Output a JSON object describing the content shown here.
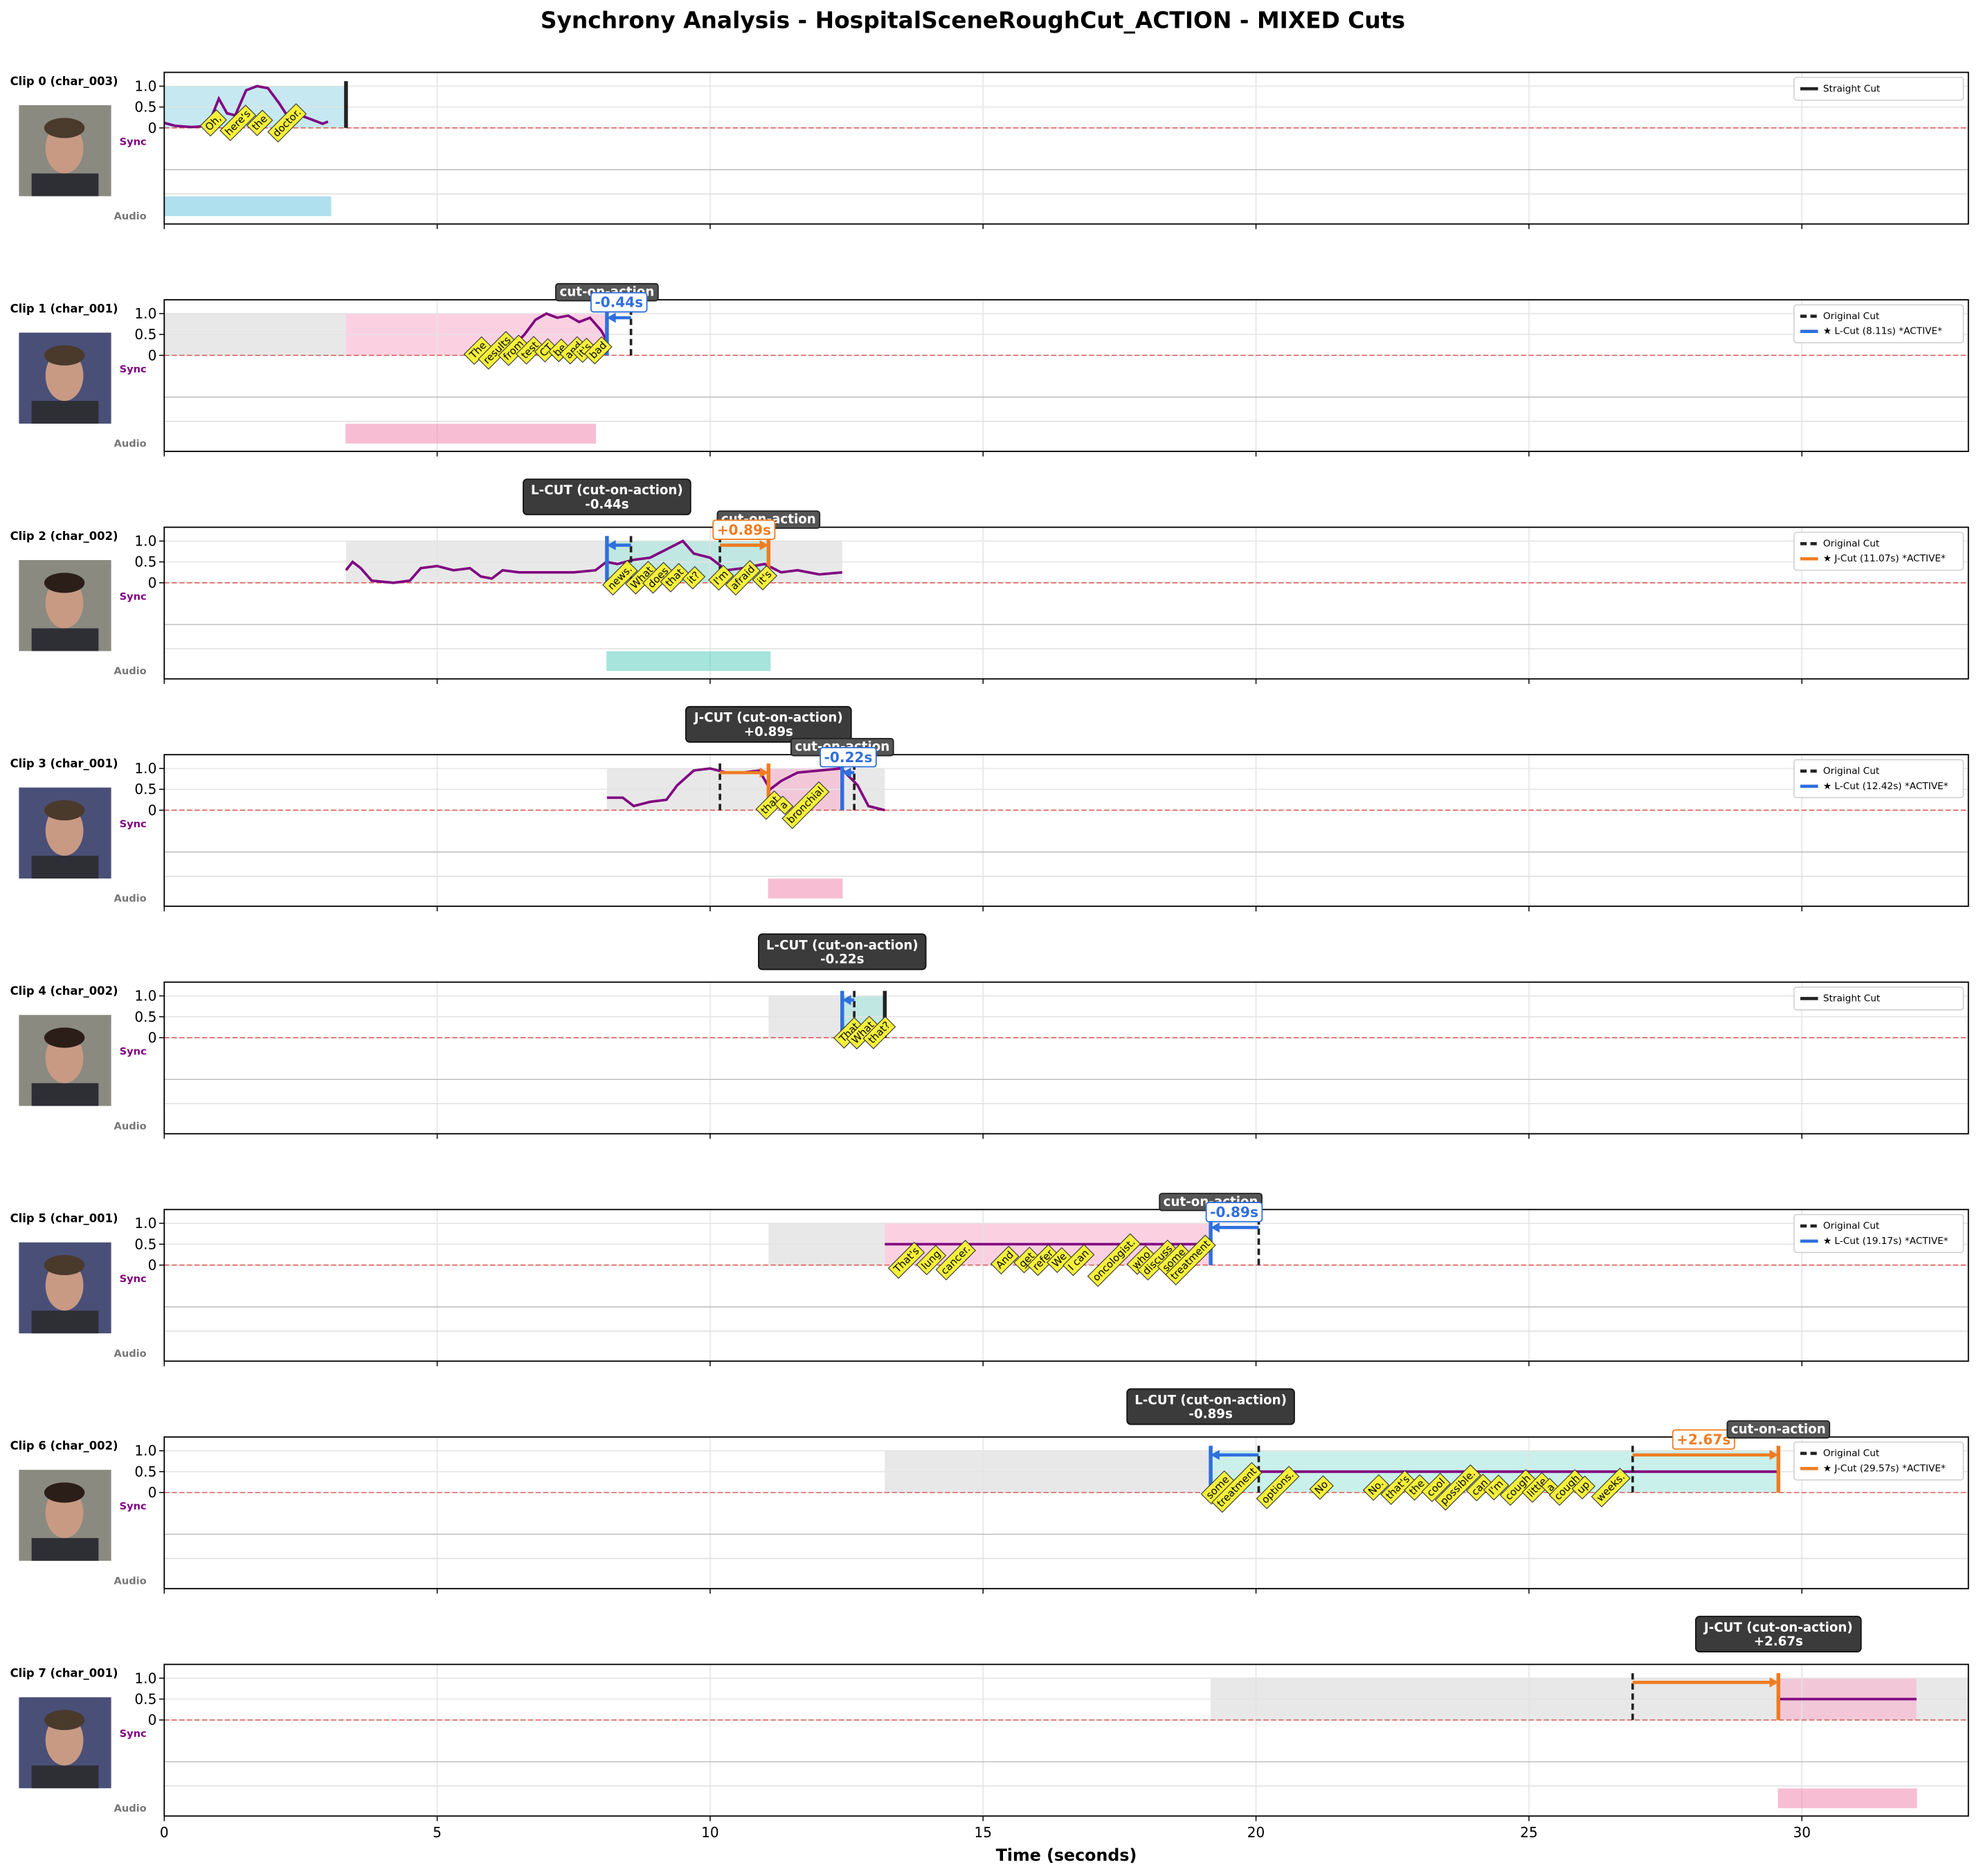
{
  "chart_data": {
    "type": "timeline",
    "title": "Synchrony Analysis - HospitalSceneRoughCut_ACTION - MIXED Cuts",
    "x_label": "Time (seconds)",
    "sync_label": "Sync",
    "audio_label": "Audio",
    "xlim": [
      0,
      33.05
    ],
    "xticks": [
      0,
      5,
      10,
      15,
      20,
      25,
      30
    ],
    "ylim": [
      -2.3,
      1.33
    ],
    "yticks": [
      0,
      0.5,
      {
        "value": 1,
        "label": "1.0"
      }
    ],
    "panels": [
      {
        "label": "Clip 0 (char_003)",
        "spans": [
          {
            "start": 0,
            "end": 3.33,
            "color": "#9fd9e8"
          }
        ],
        "sync": {
          "x": [
            0,
            0.2,
            0.5,
            0.8,
            1.0,
            1.15,
            1.3,
            1.5,
            1.7,
            1.9,
            2.1,
            2.3,
            2.5,
            2.7,
            2.9,
            3.0
          ],
          "values": [
            0.12,
            0.05,
            0.02,
            0.05,
            0.7,
            0.35,
            0.3,
            0.9,
            1.0,
            0.95,
            0.6,
            0.2,
            0.3,
            0.2,
            0.1,
            0.15
          ]
        },
        "words": [
          {
            "text": "Oh,",
            "x": 0.9
          },
          {
            "text": "here's",
            "x": 1.35
          },
          {
            "text": "the",
            "x": 1.75
          },
          {
            "text": "doctor.",
            "x": 2.25
          }
        ],
        "cuts": [
          {
            "x": 3.33,
            "style": "solid",
            "color": "#222222"
          }
        ],
        "legend": [
          {
            "label": "Straight Cut",
            "style": "solid",
            "color": "#222222"
          }
        ],
        "audio": {
          "start": 0,
          "end": 3.05,
          "color": "#62c2dc"
        }
      },
      {
        "label": "Clip 1 (char_001)",
        "spans": [
          {
            "start": 0,
            "end": 3.33,
            "color": "#d9d9d9"
          },
          {
            "start": 3.33,
            "end": 8.11,
            "color": "#f9b3cf"
          }
        ],
        "sync": {
          "x": [
            5.9,
            6.3,
            6.6,
            6.8,
            7.0,
            7.2,
            7.4,
            7.6,
            7.8,
            8.0,
            8.11
          ],
          "values": [
            0,
            0.1,
            0.5,
            0.85,
            1.0,
            0.9,
            0.95,
            0.8,
            0.9,
            0.6,
            0.35
          ]
        },
        "words": [
          {
            "text": "The",
            "x": 5.75
          },
          {
            "text": "results",
            "x": 6.1
          },
          {
            "text": "from",
            "x": 6.4
          },
          {
            "text": "test",
            "x": 6.7
          },
          {
            "text": "CT",
            "x": 7.0
          },
          {
            "text": "be",
            "x": 7.25
          },
          {
            "text": "and",
            "x": 7.5
          },
          {
            "text": "it's",
            "x": 7.7
          },
          {
            "text": "bad",
            "x": 7.95
          }
        ],
        "cuts": [
          {
            "x": 8.55,
            "style": "dashed",
            "color": "#222222"
          },
          {
            "x": 8.11,
            "style": "solid",
            "color": "#2f6fdd"
          }
        ],
        "arrows": [
          {
            "from": 8.55,
            "to": 8.11,
            "y": 0.9,
            "color": "#2f6fdd"
          }
        ],
        "notes": [
          {
            "kind": "tag",
            "text": "cut-on-action",
            "x": 8.11
          },
          {
            "kind": "offset",
            "text": "-0.44s",
            "x": 8.33,
            "color": "#2f6fdd"
          }
        ],
        "legend": [
          {
            "label": "Original Cut",
            "style": "dashed",
            "color": "#222222"
          },
          {
            "label": "★ L-Cut (8.11s) *ACTIVE*",
            "style": "solid",
            "color": "#2f6fdd"
          }
        ],
        "audio": {
          "start": 3.33,
          "end": 7.9,
          "color": "#f07fa8"
        }
      },
      {
        "label": "Clip 2 (char_002)",
        "spans": [
          {
            "start": 3.33,
            "end": 12.42,
            "color": "#d9d9d9"
          },
          {
            "start": 8.11,
            "end": 11.07,
            "color": "#a6e6de"
          }
        ],
        "sync": {
          "x": [
            3.33,
            3.45,
            3.6,
            3.8,
            4.2,
            4.5,
            4.7,
            5.0,
            5.3,
            5.6,
            5.8,
            6.0,
            6.2,
            6.5,
            7.0,
            7.5,
            7.9,
            8.1,
            8.3,
            8.6,
            8.9,
            9.2,
            9.5,
            9.7,
            10.0,
            10.3,
            10.6,
            11.0,
            11.3,
            11.6,
            12.0,
            12.42
          ],
          "values": [
            0.3,
            0.5,
            0.35,
            0.05,
            0,
            0.05,
            0.35,
            0.4,
            0.3,
            0.35,
            0.15,
            0.1,
            0.3,
            0.25,
            0.25,
            0.25,
            0.3,
            0.5,
            0.45,
            0.55,
            0.6,
            0.8,
            1.0,
            0.7,
            0.6,
            0.3,
            0.35,
            0.45,
            0.25,
            0.3,
            0.2,
            0.25
          ]
        },
        "words": [
          {
            "text": "news.",
            "x": 8.35
          },
          {
            "text": "What",
            "x": 8.75
          },
          {
            "text": "does",
            "x": 9.05
          },
          {
            "text": "that",
            "x": 9.35
          },
          {
            "text": "it?",
            "x": 9.7
          },
          {
            "text": "I'm",
            "x": 10.2
          },
          {
            "text": "afraid",
            "x": 10.6
          },
          {
            "text": "it's",
            "x": 11.0
          }
        ],
        "cuts": [
          {
            "x": 8.55,
            "style": "dashed",
            "color": "#222222"
          },
          {
            "x": 10.18,
            "style": "dashed",
            "color": "#222222"
          },
          {
            "x": 8.11,
            "style": "solid",
            "color": "#2f6fdd"
          },
          {
            "x": 11.07,
            "style": "solid",
            "color": "#f07c21"
          }
        ],
        "arrows": [
          {
            "from": 8.55,
            "to": 8.11,
            "y": 0.9,
            "color": "#2f6fdd"
          },
          {
            "from": 10.18,
            "to": 11.07,
            "y": 0.9,
            "color": "#f07c21"
          }
        ],
        "notes": [
          {
            "kind": "banner",
            "lines": [
              "L-CUT (cut-on-action)",
              "-0.44s"
            ],
            "x": 8.11
          },
          {
            "kind": "tag",
            "text": "cut-on-action",
            "x": 11.07
          },
          {
            "kind": "offset",
            "text": "+0.89s",
            "x": 10.62,
            "color": "#f07c21"
          }
        ],
        "legend": [
          {
            "label": "Original Cut",
            "style": "dashed",
            "color": "#222222"
          },
          {
            "label": "★ J-Cut (11.07s) *ACTIVE*",
            "style": "solid",
            "color": "#f07c21"
          }
        ],
        "audio": {
          "start": 8.11,
          "end": 11.1,
          "color": "#4fcbbb"
        }
      },
      {
        "label": "Clip 3 (char_001)",
        "spans": [
          {
            "start": 8.11,
            "end": 13.2,
            "color": "#d9d9d9"
          },
          {
            "start": 11.07,
            "end": 12.42,
            "color": "#f9b3cf"
          }
        ],
        "sync": {
          "x": [
            8.11,
            8.4,
            8.6,
            8.9,
            9.2,
            9.4,
            9.7,
            10.0,
            10.3,
            10.6,
            10.9,
            11.1,
            11.3,
            11.6,
            12.0,
            12.4,
            12.7,
            12.9,
            13.2
          ],
          "values": [
            0.3,
            0.3,
            0.1,
            0.2,
            0.25,
            0.6,
            0.95,
            1.0,
            0.9,
            0.9,
            0.95,
            0.5,
            0.7,
            0.9,
            0.95,
            1.0,
            0.6,
            0.1,
            0
          ]
        },
        "words": [
          {
            "text": "that",
            "x": 11.1
          },
          {
            "text": "a",
            "x": 11.35
          },
          {
            "text": "bronchial",
            "x": 11.75
          }
        ],
        "cuts": [
          {
            "x": 10.18,
            "style": "dashed",
            "color": "#222222"
          },
          {
            "x": 12.64,
            "style": "dashed",
            "color": "#222222"
          },
          {
            "x": 11.07,
            "style": "solid",
            "color": "#f07c21"
          },
          {
            "x": 12.42,
            "style": "solid",
            "color": "#2f6fdd"
          }
        ],
        "arrows": [
          {
            "from": 10.18,
            "to": 11.07,
            "y": 0.9,
            "color": "#f07c21"
          },
          {
            "from": 12.64,
            "to": 12.42,
            "y": 0.9,
            "color": "#2f6fdd"
          }
        ],
        "notes": [
          {
            "kind": "banner",
            "lines": [
              "J-CUT (cut-on-action)",
              "+0.89s"
            ],
            "x": 11.07
          },
          {
            "kind": "tag",
            "text": "cut-on-action",
            "x": 12.42
          },
          {
            "kind": "offset",
            "text": "-0.22s",
            "x": 12.53,
            "color": "#2f6fdd"
          }
        ],
        "legend": [
          {
            "label": "Original Cut",
            "style": "dashed",
            "color": "#222222"
          },
          {
            "label": "★ L-Cut (12.42s) *ACTIVE*",
            "style": "solid",
            "color": "#2f6fdd"
          }
        ],
        "audio": {
          "start": 11.07,
          "end": 12.42,
          "color": "#f07fa8"
        }
      },
      {
        "label": "Clip 4 (char_002)",
        "spans": [
          {
            "start": 11.07,
            "end": 13.2,
            "color": "#d9d9d9"
          },
          {
            "start": 12.42,
            "end": 13.2,
            "color": "#a6e6de"
          }
        ],
        "words": [
          {
            "text": "That",
            "x": 12.55
          },
          {
            "text": "What",
            "x": 12.8
          },
          {
            "text": "that?",
            "x": 13.1
          }
        ],
        "cuts": [
          {
            "x": 12.64,
            "style": "dashed",
            "color": "#222222"
          },
          {
            "x": 12.42,
            "style": "solid",
            "color": "#2f6fdd"
          },
          {
            "x": 13.2,
            "style": "solid",
            "color": "#222222"
          }
        ],
        "arrows": [
          {
            "from": 12.64,
            "to": 12.42,
            "y": 0.9,
            "color": "#2f6fdd"
          }
        ],
        "notes": [
          {
            "kind": "banner",
            "lines": [
              "L-CUT (cut-on-action)",
              "-0.22s"
            ],
            "x": 12.42
          }
        ],
        "legend": [
          {
            "label": "Straight Cut",
            "style": "solid",
            "color": "#222222"
          }
        ]
      },
      {
        "label": "Clip 5 (char_001)",
        "spans": [
          {
            "start": 11.07,
            "end": 13.2,
            "color": "#d9d9d9"
          },
          {
            "start": 13.2,
            "end": 19.17,
            "color": "#f9b3cf"
          }
        ],
        "sync": {
          "x": [
            13.2,
            19.17
          ],
          "values": [
            0.5,
            0.5
          ]
        },
        "words": [
          {
            "text": "That's",
            "x": 13.6
          },
          {
            "text": "lung",
            "x": 14.05
          },
          {
            "text": "cancer.",
            "x": 14.5
          },
          {
            "text": "And",
            "x": 15.4
          },
          {
            "text": "get",
            "x": 15.8
          },
          {
            "text": "refer",
            "x": 16.1
          },
          {
            "text": "We",
            "x": 16.4
          },
          {
            "text": "I can",
            "x": 16.75
          },
          {
            "text": "oncologist.",
            "x": 17.4
          },
          {
            "text": "who",
            "x": 17.9
          },
          {
            "text": "discuss",
            "x": 18.2
          },
          {
            "text": "some",
            "x": 18.5
          },
          {
            "text": "treatment",
            "x": 18.8
          }
        ],
        "cuts": [
          {
            "x": 20.05,
            "style": "dashed",
            "color": "#222222"
          },
          {
            "x": 19.17,
            "style": "solid",
            "color": "#2f6fdd"
          }
        ],
        "arrows": [
          {
            "from": 20.05,
            "to": 19.17,
            "y": 0.9,
            "color": "#2f6fdd"
          }
        ],
        "notes": [
          {
            "kind": "tag",
            "text": "cut-on-action",
            "x": 19.17
          },
          {
            "kind": "offset",
            "text": "-0.89s",
            "x": 19.6,
            "color": "#2f6fdd"
          }
        ],
        "legend": [
          {
            "label": "Original Cut",
            "style": "dashed",
            "color": "#222222"
          },
          {
            "label": "★ L-Cut (19.17s) *ACTIVE*",
            "style": "solid",
            "color": "#2f6fdd"
          }
        ]
      },
      {
        "label": "Clip 6 (char_002)",
        "spans": [
          {
            "start": 13.2,
            "end": 19.17,
            "color": "#d9d9d9"
          },
          {
            "start": 19.17,
            "end": 29.57,
            "color": "#a6e6de"
          }
        ],
        "sync": {
          "x": [
            20.05,
            29.57
          ],
          "values": [
            0.5,
            0.5
          ]
        },
        "words": [
          {
            "text": "some",
            "x": 19.3
          },
          {
            "text": "treatment",
            "x": 19.65
          },
          {
            "text": "options.",
            "x": 20.4
          },
          {
            "text": "No",
            "x": 21.2
          },
          {
            "text": "No.",
            "x": 22.2
          },
          {
            "text": "that's",
            "x": 22.6
          },
          {
            "text": "the",
            "x": 22.95
          },
          {
            "text": "cool",
            "x": 23.3
          },
          {
            "text": "possible.",
            "x": 23.7
          },
          {
            "text": "can",
            "x": 24.1
          },
          {
            "text": "I'm",
            "x": 24.4
          },
          {
            "text": "cough",
            "x": 24.8
          },
          {
            "text": "little",
            "x": 25.15
          },
          {
            "text": "a",
            "x": 25.4
          },
          {
            "text": "cough",
            "x": 25.7
          },
          {
            "text": "up",
            "x": 26.0
          },
          {
            "text": "weeks.",
            "x": 26.5
          }
        ],
        "cuts": [
          {
            "x": 20.05,
            "style": "dashed",
            "color": "#222222"
          },
          {
            "x": 26.9,
            "style": "dashed",
            "color": "#222222"
          },
          {
            "x": 19.17,
            "style": "solid",
            "color": "#2f6fdd"
          },
          {
            "x": 29.57,
            "style": "solid",
            "color": "#f07c21"
          }
        ],
        "arrows": [
          {
            "from": 20.05,
            "to": 19.17,
            "y": 0.9,
            "color": "#2f6fdd"
          },
          {
            "from": 26.9,
            "to": 29.57,
            "y": 0.9,
            "color": "#f07c21"
          }
        ],
        "notes": [
          {
            "kind": "banner",
            "lines": [
              "L-CUT (cut-on-action)",
              "-0.89s"
            ],
            "x": 19.17
          },
          {
            "kind": "offset",
            "text": "+2.67s",
            "x": 28.2,
            "color": "#f07c21"
          },
          {
            "kind": "tag",
            "text": "cut-on-action",
            "x": 29.57
          }
        ],
        "legend": [
          {
            "label": "Original Cut",
            "style": "dashed",
            "color": "#222222"
          },
          {
            "label": "★ J-Cut (29.57s) *ACTIVE*",
            "style": "solid",
            "color": "#f07c21"
          }
        ]
      },
      {
        "label": "Clip 7 (char_001)",
        "spans": [
          {
            "start": 19.17,
            "end": 33.05,
            "color": "#d9d9d9"
          },
          {
            "start": 29.57,
            "end": 32.1,
            "color": "#f9b3cf"
          }
        ],
        "sync": {
          "x": [
            29.57,
            32.1
          ],
          "values": [
            0.5,
            0.5
          ]
        },
        "cuts": [
          {
            "x": 26.9,
            "style": "dashed",
            "color": "#222222"
          },
          {
            "x": 29.57,
            "style": "solid",
            "color": "#f07c21"
          }
        ],
        "arrows": [
          {
            "from": 26.9,
            "to": 29.57,
            "y": 0.9,
            "color": "#f07c21"
          }
        ],
        "notes": [
          {
            "kind": "banner",
            "lines": [
              "J-CUT (cut-on-action)",
              "+2.67s"
            ],
            "x": 29.57
          }
        ],
        "audio": {
          "start": 29.57,
          "end": 32.1,
          "color": "#f07fa8"
        }
      }
    ]
  }
}
